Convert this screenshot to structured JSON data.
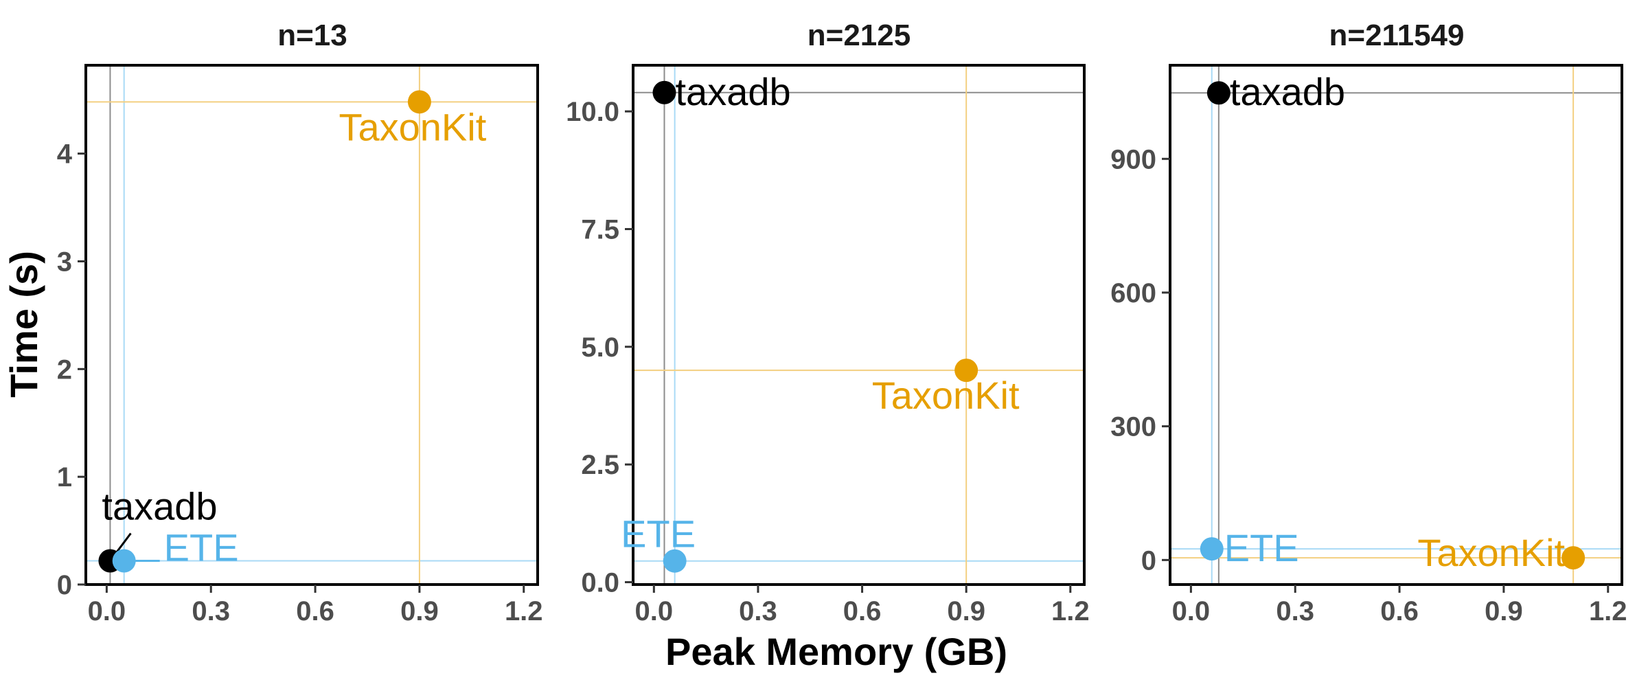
{
  "chart_data": {
    "type": "scatter",
    "xlabel": "Peak Memory (GB)",
    "ylabel": "Time (s)",
    "xlim": [
      -0.06,
      1.24
    ],
    "xticks": [
      "0.0",
      "0.3",
      "0.6",
      "0.9",
      "1.2"
    ],
    "xtick_values": [
      0,
      0.3,
      0.6,
      0.9,
      1.2
    ],
    "grid": false,
    "legend": "none",
    "series_colors": {
      "taxadb": "#000000",
      "ETE": "#56b4e9",
      "TaxonKit": "#e69f00"
    },
    "panels": [
      {
        "title": "n=13",
        "ylim": [
          0,
          4.82
        ],
        "yticks": [
          "0",
          "1",
          "2",
          "3",
          "4"
        ],
        "ytick_values": [
          0,
          1,
          2,
          3,
          4
        ],
        "points": [
          {
            "name": "taxadb",
            "x": 0.01,
            "y": 0.22,
            "label": "taxadb"
          },
          {
            "name": "ETE",
            "x": 0.05,
            "y": 0.22,
            "label": "ETE"
          },
          {
            "name": "TaxonKit",
            "x": 0.9,
            "y": 4.48,
            "label": "TaxonKit"
          }
        ]
      },
      {
        "title": "n=2125",
        "ylim": [
          -0.05,
          10.98
        ],
        "yticks": [
          "0.0",
          "2.5",
          "5.0",
          "7.5",
          "10.0"
        ],
        "ytick_values": [
          0,
          2.5,
          5,
          7.5,
          10
        ],
        "points": [
          {
            "name": "taxadb",
            "x": 0.03,
            "y": 10.4,
            "label": "taxadb"
          },
          {
            "name": "ETE",
            "x": 0.06,
            "y": 0.45,
            "label": "ETE"
          },
          {
            "name": "TaxonKit",
            "x": 0.9,
            "y": 4.5,
            "label": "TaxonKit"
          }
        ]
      },
      {
        "title": "n=211549",
        "ylim": [
          -55,
          1110
        ],
        "yticks": [
          "0",
          "300",
          "600",
          "900"
        ],
        "ytick_values": [
          0,
          300,
          600,
          900
        ],
        "points": [
          {
            "name": "taxadb",
            "x": 0.08,
            "y": 1048,
            "label": "taxadb"
          },
          {
            "name": "ETE",
            "x": 0.06,
            "y": 25,
            "label": "ETE"
          },
          {
            "name": "TaxonKit",
            "x": 1.1,
            "y": 5,
            "label": "TaxonKit"
          }
        ]
      }
    ]
  }
}
